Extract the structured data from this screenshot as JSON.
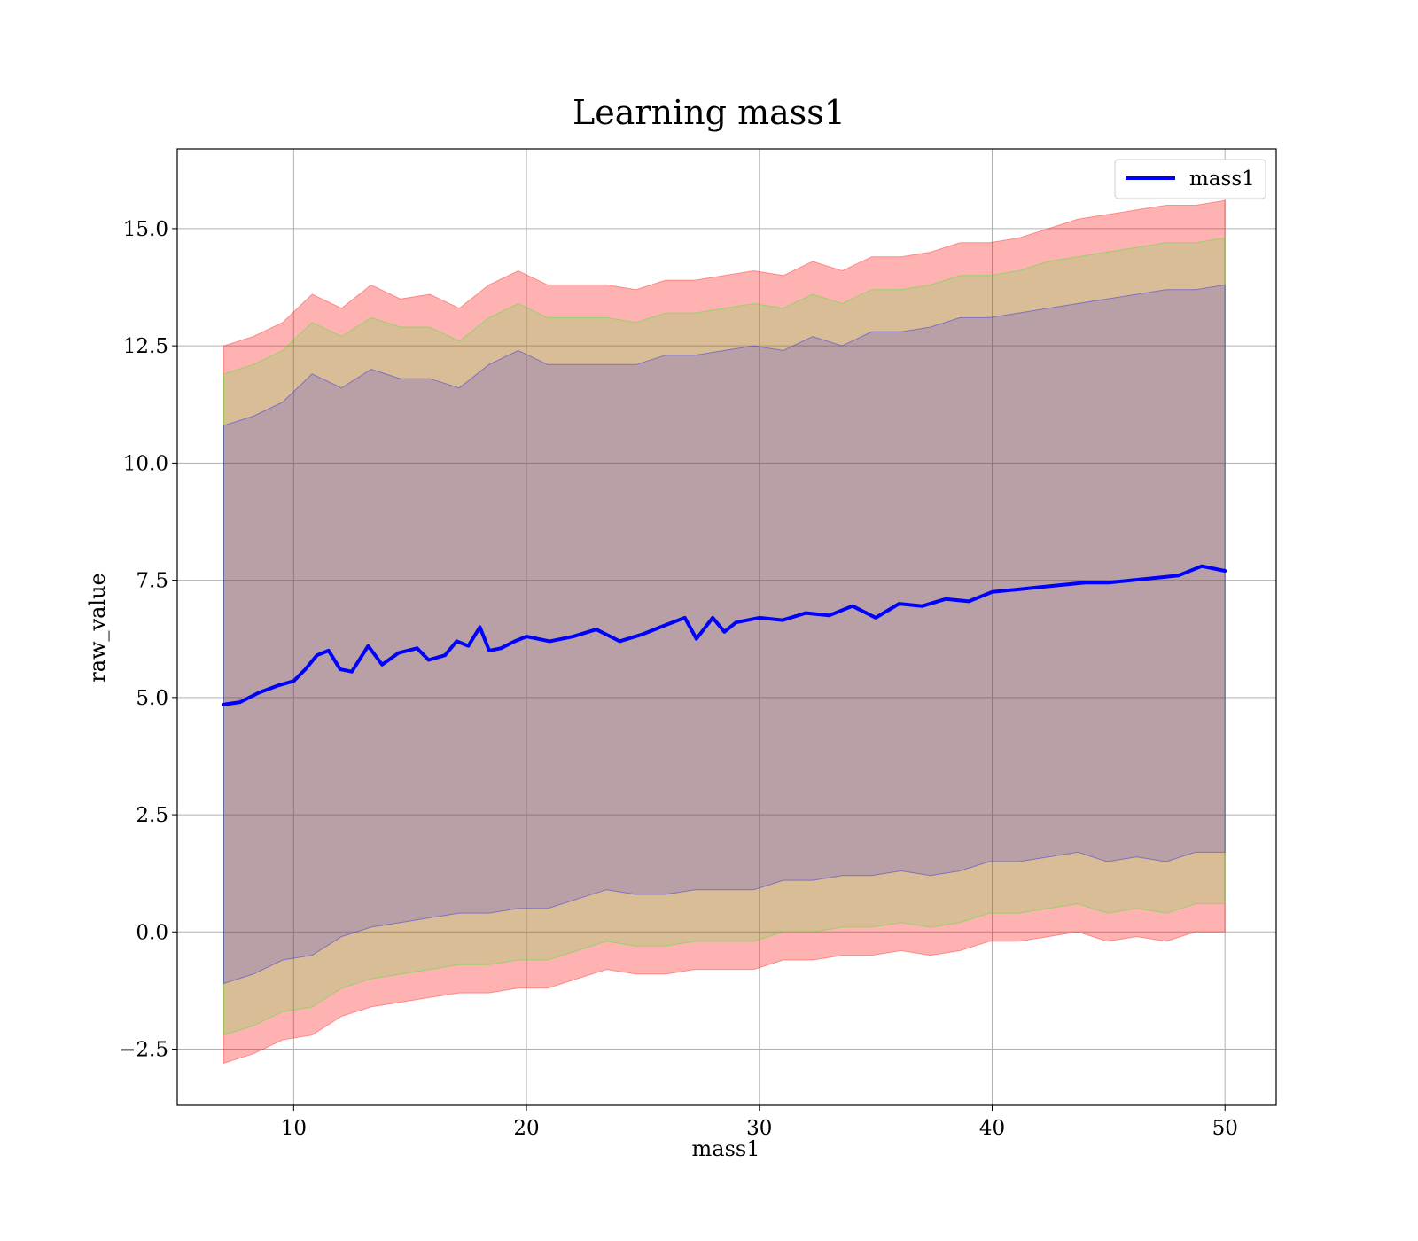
{
  "chart_data": {
    "type": "line",
    "title": "Learning mass1",
    "xlabel": "mass1",
    "ylabel": "raw_value",
    "xlim": [
      5,
      52.2
    ],
    "ylim": [
      -3.7,
      16.7
    ],
    "xticks": [
      10,
      20,
      30,
      40,
      50
    ],
    "xtick_labels": [
      "10",
      "20",
      "30",
      "40",
      "50"
    ],
    "yticks": [
      -2.5,
      0.0,
      2.5,
      5.0,
      7.5,
      10.0,
      12.5,
      15.0
    ],
    "ytick_labels": [
      "−2.5",
      "0.0",
      "2.5",
      "5.0",
      "7.5",
      "10.0",
      "12.5",
      "15.0"
    ],
    "grid": true,
    "legend_position": "top-right",
    "x_range": [
      7.0,
      50.0
    ],
    "series": [
      {
        "name": "mass1",
        "color": "#0000ff",
        "x": [
          7.0,
          7.7,
          8.5,
          9.3,
          10.0,
          10.5,
          11.0,
          11.5,
          12.0,
          12.5,
          13.2,
          13.8,
          14.5,
          15.3,
          15.8,
          16.5,
          17.0,
          17.5,
          18.0,
          18.4,
          18.9,
          19.5,
          20.0,
          21.0,
          22.0,
          23.0,
          24.0,
          25.0,
          26.0,
          26.8,
          27.3,
          28.0,
          28.5,
          29.0,
          30.0,
          31.0,
          32.0,
          33.0,
          34.0,
          35.0,
          36.0,
          37.0,
          38.0,
          39.0,
          40.0,
          41.0,
          42.0,
          43.0,
          44.0,
          45.0,
          46.0,
          47.0,
          48.0,
          49.0,
          50.0
        ],
        "values": [
          4.85,
          4.9,
          5.1,
          5.25,
          5.35,
          5.6,
          5.9,
          6.0,
          5.6,
          5.55,
          6.1,
          5.7,
          5.95,
          6.05,
          5.8,
          5.9,
          6.2,
          6.1,
          6.5,
          6.0,
          6.05,
          6.2,
          6.3,
          6.2,
          6.3,
          6.45,
          6.2,
          6.35,
          6.55,
          6.7,
          6.25,
          6.7,
          6.4,
          6.6,
          6.7,
          6.65,
          6.8,
          6.75,
          6.95,
          6.7,
          7.0,
          6.95,
          7.1,
          7.05,
          7.25,
          7.3,
          7.35,
          7.4,
          7.45,
          7.45,
          7.5,
          7.55,
          7.6,
          7.8,
          7.7
        ]
      }
    ],
    "bands": [
      {
        "color": "#ff0000",
        "opacity": 0.3,
        "upper": [
          12.5,
          12.7,
          13.0,
          13.6,
          13.3,
          13.8,
          13.5,
          13.6,
          13.3,
          13.8,
          14.1,
          13.8,
          13.8,
          13.8,
          13.7,
          13.9,
          13.9,
          14.0,
          14.1,
          14.0,
          14.3,
          14.1,
          14.4,
          14.4,
          14.5,
          14.7,
          14.7,
          14.8,
          15.0,
          15.2,
          15.3,
          15.4,
          15.5,
          15.5,
          15.6
        ],
        "lower": [
          -2.8,
          -2.6,
          -2.3,
          -2.2,
          -1.8,
          -1.6,
          -1.5,
          -1.4,
          -1.3,
          -1.3,
          -1.2,
          -1.2,
          -1.0,
          -0.8,
          -0.9,
          -0.9,
          -0.8,
          -0.8,
          -0.8,
          -0.6,
          -0.6,
          -0.5,
          -0.5,
          -0.4,
          -0.5,
          -0.4,
          -0.2,
          -0.2,
          -0.1,
          0.0,
          -0.2,
          -0.1,
          -0.2,
          0.0,
          0.0
        ]
      },
      {
        "color": "#00ff00",
        "opacity": 0.15,
        "upper": [
          11.9,
          12.1,
          12.4,
          13.0,
          12.7,
          13.1,
          12.9,
          12.9,
          12.6,
          13.1,
          13.4,
          13.1,
          13.1,
          13.1,
          13.0,
          13.2,
          13.2,
          13.3,
          13.4,
          13.3,
          13.6,
          13.4,
          13.7,
          13.7,
          13.8,
          14.0,
          14.0,
          14.1,
          14.3,
          14.4,
          14.5,
          14.6,
          14.7,
          14.7,
          14.8
        ],
        "lower": [
          -2.2,
          -2.0,
          -1.7,
          -1.6,
          -1.2,
          -1.0,
          -0.9,
          -0.8,
          -0.7,
          -0.7,
          -0.6,
          -0.6,
          -0.4,
          -0.2,
          -0.3,
          -0.3,
          -0.2,
          -0.2,
          -0.2,
          0.0,
          0.0,
          0.1,
          0.1,
          0.2,
          0.1,
          0.2,
          0.4,
          0.4,
          0.5,
          0.6,
          0.4,
          0.5,
          0.4,
          0.6,
          0.6
        ]
      },
      {
        "color": "#0000ff",
        "opacity": 0.15,
        "upper": [
          10.8,
          11.0,
          11.3,
          11.9,
          11.6,
          12.0,
          11.8,
          11.8,
          11.6,
          12.1,
          12.4,
          12.1,
          12.1,
          12.1,
          12.1,
          12.3,
          12.3,
          12.4,
          12.5,
          12.4,
          12.7,
          12.5,
          12.8,
          12.8,
          12.9,
          13.1,
          13.1,
          13.2,
          13.3,
          13.4,
          13.5,
          13.6,
          13.7,
          13.7,
          13.8
        ],
        "lower": [
          -1.1,
          -0.9,
          -0.6,
          -0.5,
          -0.1,
          0.1,
          0.2,
          0.3,
          0.4,
          0.4,
          0.5,
          0.5,
          0.7,
          0.9,
          0.8,
          0.8,
          0.9,
          0.9,
          0.9,
          1.1,
          1.1,
          1.2,
          1.2,
          1.3,
          1.2,
          1.3,
          1.5,
          1.5,
          1.6,
          1.7,
          1.5,
          1.6,
          1.5,
          1.7,
          1.7
        ]
      }
    ]
  }
}
